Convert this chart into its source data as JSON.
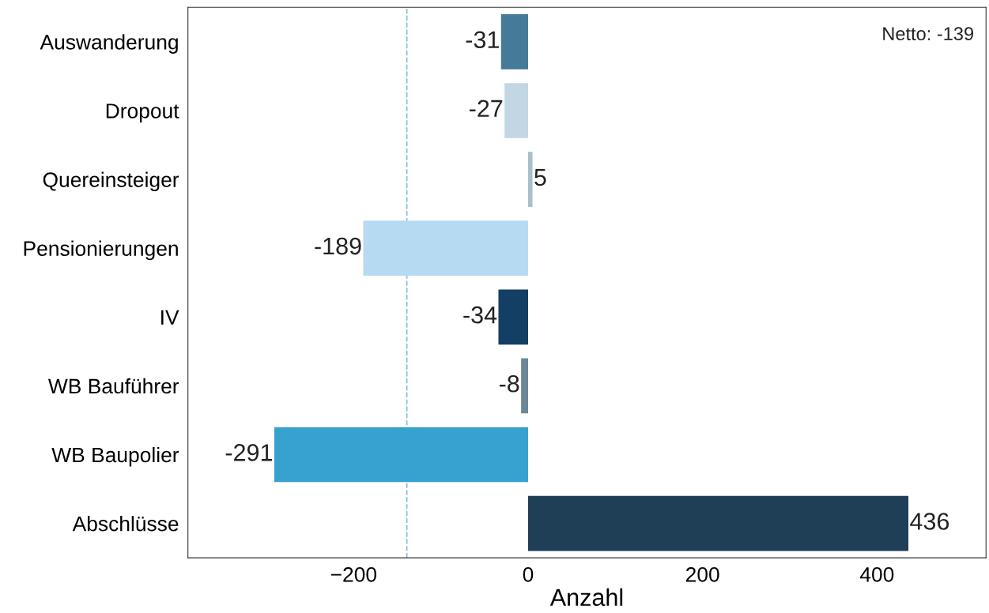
{
  "chart_data": {
    "type": "bar",
    "orientation": "horizontal",
    "xlabel": "Anzahl",
    "categories": [
      "Auswanderung",
      "Dropout",
      "Quereinsteiger",
      "Pensionierungen",
      "IV",
      "WB Bauführer",
      "WB Baupolier",
      "Abschlüsse"
    ],
    "values": [
      -31,
      -27,
      5,
      -189,
      -34,
      -8,
      -291,
      436
    ],
    "colors": [
      "#467a99",
      "#c2d6e4",
      "#a9bfc9",
      "#b7daf3",
      "#123f63",
      "#6b8797",
      "#37a2cd",
      "#1f3f57"
    ],
    "data_labels": true,
    "xlim": [
      -390,
      525
    ],
    "xticks": [
      {
        "value": -200,
        "label": "−200"
      },
      0,
      200,
      400
    ],
    "ref_lines": [
      {
        "axis": "x",
        "value": -139,
        "color": "#7fbfd0",
        "line_style": "dashed"
      }
    ],
    "annotations": [
      "Netto: -139"
    ],
    "grid": false,
    "legend": false
  }
}
